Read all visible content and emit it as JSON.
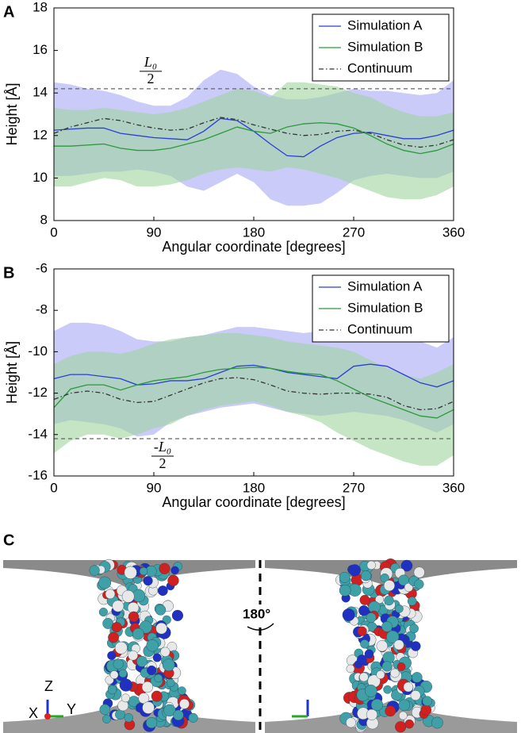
{
  "chart_data": [
    {
      "type": "line",
      "panel": "A",
      "xlabel": "Angular coordinate [degrees]",
      "ylabel": "Height [Å]",
      "x": [
        0,
        15,
        30,
        45,
        60,
        75,
        90,
        105,
        120,
        135,
        150,
        165,
        180,
        195,
        210,
        225,
        240,
        255,
        270,
        285,
        300,
        315,
        330,
        345,
        360
      ],
      "xlim": [
        0,
        360
      ],
      "xticks": [
        0,
        90,
        180,
        270,
        360
      ],
      "ylim": [
        8,
        18
      ],
      "yticks": [
        8,
        10,
        12,
        14,
        16,
        18
      ],
      "legend": "upper right",
      "reference_line": 14.2,
      "annotation": {
        "top": "L₀",
        "bottom": "2"
      },
      "series": [
        {
          "name": "Simulation A",
          "color": "#2b3fd6",
          "band_color": "#a9a9f5",
          "linestyle": "solid",
          "values": [
            12.25,
            12.3,
            12.35,
            12.35,
            12.1,
            12.0,
            11.9,
            11.85,
            11.8,
            12.2,
            12.8,
            12.7,
            12.2,
            11.6,
            11.05,
            11.0,
            11.5,
            11.9,
            12.1,
            12.15,
            12.0,
            11.85,
            11.85,
            12.0,
            12.25
          ],
          "upper": [
            14.5,
            14.4,
            14.2,
            14.1,
            13.9,
            13.6,
            13.4,
            13.4,
            13.8,
            14.6,
            15.1,
            14.9,
            14.3,
            13.9,
            13.7,
            13.7,
            13.8,
            14.0,
            14.2,
            14.1,
            14.1,
            14.0,
            13.9,
            14.0,
            14.6
          ],
          "lower": [
            10.1,
            10.1,
            10.2,
            10.3,
            10.3,
            10.4,
            10.3,
            10.1,
            9.6,
            9.4,
            9.8,
            10.2,
            9.8,
            9.0,
            8.7,
            8.7,
            8.8,
            9.3,
            9.9,
            10.1,
            10.2,
            10.1,
            10.0,
            10.0,
            10.3
          ]
        },
        {
          "name": "Simulation B",
          "color": "#2a9a3a",
          "band_color": "#9fd49f",
          "linestyle": "solid",
          "values": [
            11.5,
            11.5,
            11.55,
            11.6,
            11.4,
            11.3,
            11.3,
            11.4,
            11.6,
            11.8,
            12.1,
            12.4,
            12.2,
            12.1,
            12.4,
            12.55,
            12.6,
            12.55,
            12.35,
            12.0,
            11.6,
            11.3,
            11.15,
            11.3,
            11.6
          ],
          "upper": [
            13.3,
            13.2,
            13.2,
            13.3,
            13.2,
            13.1,
            13.0,
            13.1,
            13.3,
            13.6,
            13.9,
            14.2,
            14.1,
            13.8,
            14.5,
            14.5,
            14.4,
            14.3,
            14.0,
            13.8,
            13.4,
            13.1,
            12.9,
            12.9,
            13.1
          ],
          "lower": [
            9.6,
            9.6,
            9.8,
            10.0,
            9.9,
            9.6,
            9.6,
            9.7,
            9.9,
            10.2,
            10.4,
            10.5,
            10.4,
            10.3,
            10.5,
            10.4,
            10.2,
            10.0,
            9.7,
            9.4,
            9.1,
            9.0,
            9.0,
            9.2,
            9.6
          ]
        },
        {
          "name": "Continuum",
          "color": "#333333",
          "linestyle": "dashdot",
          "values": [
            12.1,
            12.4,
            12.6,
            12.8,
            12.7,
            12.5,
            12.35,
            12.25,
            12.3,
            12.6,
            12.85,
            12.75,
            12.5,
            12.3,
            12.1,
            12.0,
            12.05,
            12.2,
            12.25,
            12.1,
            11.8,
            11.55,
            11.45,
            11.55,
            11.8
          ]
        }
      ]
    },
    {
      "type": "line",
      "panel": "B",
      "xlabel": "Angular coordinate [degrees]",
      "ylabel": "Height [Å]",
      "x": [
        0,
        15,
        30,
        45,
        60,
        75,
        90,
        105,
        120,
        135,
        150,
        165,
        180,
        195,
        210,
        225,
        240,
        255,
        270,
        285,
        300,
        315,
        330,
        345,
        360
      ],
      "xlim": [
        0,
        360
      ],
      "xticks": [
        0,
        90,
        180,
        270,
        360
      ],
      "ylim": [
        -16,
        -6
      ],
      "yticks": [
        -16,
        -14,
        -12,
        -10,
        -8,
        -6
      ],
      "legend": "upper right",
      "reference_line": -14.2,
      "annotation": {
        "top": "-L₀",
        "bottom": "2"
      },
      "series": [
        {
          "name": "Simulation A",
          "color": "#2b3fd6",
          "band_color": "#a9a9f5",
          "linestyle": "solid",
          "values": [
            -11.3,
            -11.1,
            -11.1,
            -11.2,
            -11.3,
            -11.6,
            -11.55,
            -11.4,
            -11.4,
            -11.3,
            -11.0,
            -10.7,
            -10.65,
            -10.8,
            -11.0,
            -11.1,
            -11.2,
            -11.3,
            -10.7,
            -10.6,
            -10.7,
            -11.1,
            -11.5,
            -11.7,
            -11.4
          ],
          "upper": [
            -9.0,
            -8.6,
            -8.6,
            -8.7,
            -9.0,
            -9.4,
            -9.5,
            -9.5,
            -9.3,
            -9.2,
            -9.0,
            -8.8,
            -8.8,
            -8.9,
            -9.0,
            -9.1,
            -9.0,
            -8.9,
            -8.8,
            -8.8,
            -8.9,
            -9.1,
            -9.5,
            -9.8,
            -9.3
          ],
          "lower": [
            -13.5,
            -13.3,
            -13.4,
            -13.5,
            -13.7,
            -14.1,
            -14.0,
            -13.4,
            -13.1,
            -12.9,
            -12.7,
            -12.6,
            -12.5,
            -12.7,
            -12.9,
            -13.0,
            -13.1,
            -13.0,
            -12.9,
            -13.0,
            -13.1,
            -13.3,
            -13.6,
            -13.9,
            -13.5
          ]
        },
        {
          "name": "Simulation B",
          "color": "#2a9a3a",
          "band_color": "#9fd49f",
          "linestyle": "solid",
          "values": [
            -12.7,
            -11.8,
            -11.6,
            -11.6,
            -11.85,
            -11.6,
            -11.4,
            -11.3,
            -11.2,
            -11.0,
            -10.85,
            -10.8,
            -10.75,
            -10.8,
            -10.95,
            -11.05,
            -11.1,
            -11.4,
            -11.8,
            -12.2,
            -12.5,
            -12.8,
            -13.1,
            -13.2,
            -12.8
          ],
          "upper": [
            -10.6,
            -10.2,
            -10.0,
            -10.0,
            -10.1,
            -9.9,
            -9.6,
            -9.4,
            -9.3,
            -9.2,
            -9.1,
            -9.1,
            -9.2,
            -9.3,
            -9.5,
            -9.6,
            -9.7,
            -9.8,
            -10.0,
            -10.4,
            -10.8,
            -11.1,
            -11.3,
            -11.0,
            -10.6
          ],
          "lower": [
            -14.9,
            -14.3,
            -14.0,
            -14.0,
            -14.2,
            -14.0,
            -13.7,
            -13.5,
            -13.1,
            -12.8,
            -12.6,
            -12.5,
            -12.4,
            -12.6,
            -12.9,
            -13.1,
            -13.4,
            -13.9,
            -14.3,
            -14.7,
            -15.0,
            -15.3,
            -15.5,
            -15.5,
            -15.0
          ]
        },
        {
          "name": "Continuum",
          "color": "#333333",
          "linestyle": "dashdot",
          "values": [
            -12.3,
            -12.0,
            -11.9,
            -12.0,
            -12.3,
            -12.45,
            -12.4,
            -12.1,
            -11.8,
            -11.5,
            -11.3,
            -11.25,
            -11.35,
            -11.6,
            -11.9,
            -12.0,
            -12.05,
            -12.0,
            -12.0,
            -12.05,
            -12.2,
            -12.6,
            -12.8,
            -12.75,
            -12.4
          ]
        }
      ]
    }
  ],
  "panel_c": {
    "label": "C",
    "rotation": "180°",
    "axes": {
      "x": "X",
      "y": "Y",
      "z": "Z"
    }
  }
}
